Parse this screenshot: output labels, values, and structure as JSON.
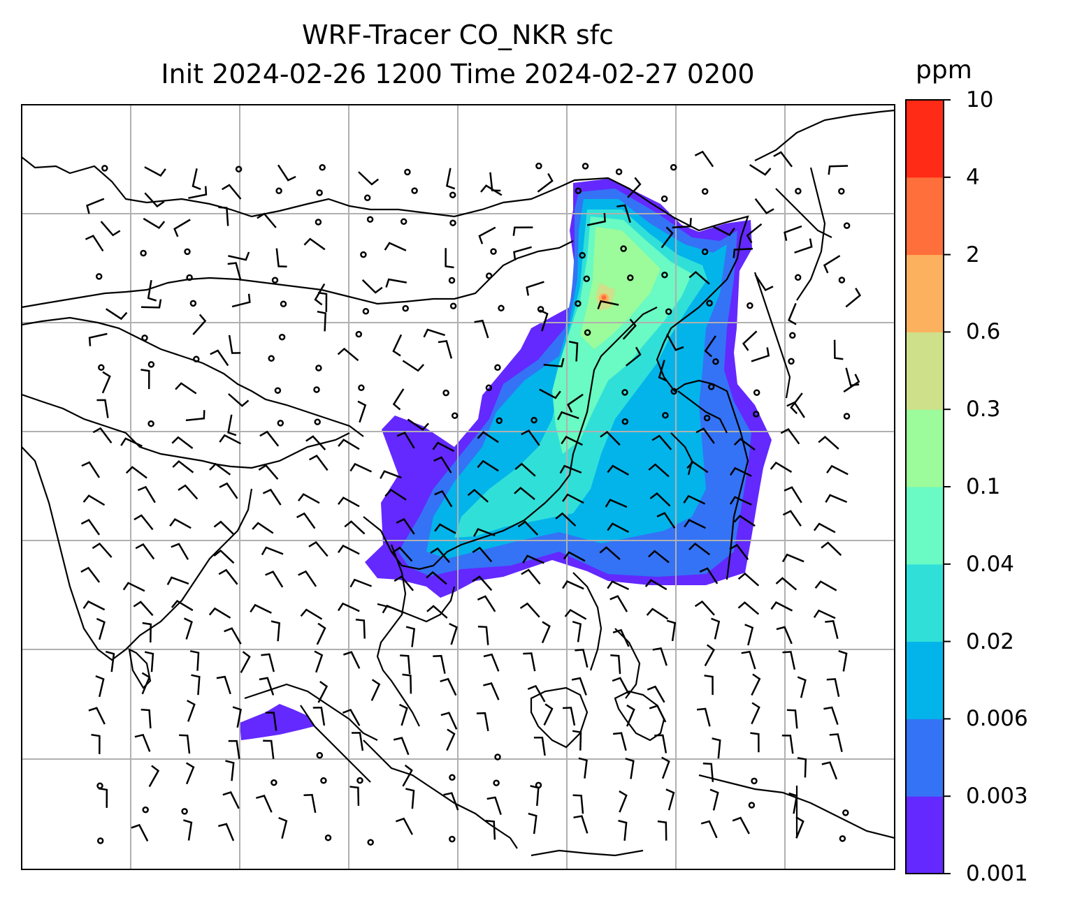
{
  "title": {
    "line1": "WRF-Tracer CO_NKR sfc",
    "line2": "Init 2024-02-26 1200 Time 2024-02-27 0200"
  },
  "colorbar": {
    "unit": "ppm",
    "ticks": [
      "0.001",
      "0.003",
      "0.006",
      "0.02",
      "0.04",
      "0.1",
      "0.3",
      "0.6",
      "2",
      "4",
      "10"
    ],
    "colors": [
      "#6329ff",
      "#3473f5",
      "#02b4ea",
      "#30e0d8",
      "#6afac3",
      "#9cfb9a",
      "#cfe08a",
      "#fcb15f",
      "#ff6f3b",
      "#ff2b17"
    ]
  },
  "map": {
    "field": "CO_NKR surface tracer concentration",
    "overlay": "wind barbs",
    "gridlines": true
  }
}
